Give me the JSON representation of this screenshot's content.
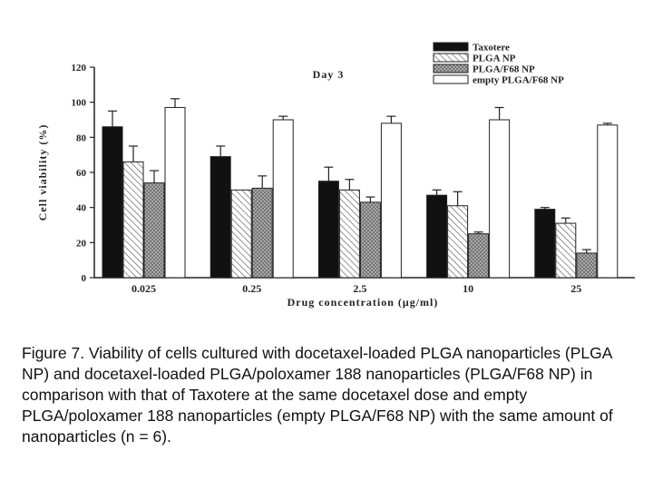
{
  "chart_data": {
    "type": "bar",
    "title": "Day 3",
    "xlabel": "Drug concentration (μg/ml)",
    "ylabel": "Cell viability (%)",
    "ylim": [
      0,
      120
    ],
    "yticks": [
      0,
      20,
      40,
      60,
      80,
      100,
      120
    ],
    "categories": [
      "0.025",
      "0.25",
      "2.5",
      "10",
      "25"
    ],
    "legend_position": "top-right",
    "grid": false,
    "series": [
      {
        "name": "Taxotere",
        "pattern": "solid-black",
        "values": [
          86,
          69,
          55,
          47,
          39
        ],
        "errors": [
          9,
          6,
          8,
          3,
          1
        ]
      },
      {
        "name": "PLGA NP",
        "pattern": "diagonal-hatch",
        "values": [
          66,
          50,
          50,
          41,
          31
        ],
        "errors": [
          9,
          0,
          6,
          8,
          3
        ]
      },
      {
        "name": "PLGA/F68 NP",
        "pattern": "crosshatch-gray",
        "values": [
          54,
          51,
          43,
          25,
          14
        ],
        "errors": [
          7,
          7,
          3,
          1,
          2
        ]
      },
      {
        "name": "empty PLGA/F68 NP",
        "pattern": "white",
        "values": [
          97,
          90,
          88,
          90,
          87
        ],
        "errors": [
          5,
          2,
          4,
          7,
          1
        ]
      }
    ]
  },
  "caption": "Figure 7. Viability of cells cultured with docetaxel-loaded PLGA nanoparticles (PLGA NP) and docetaxel-loaded PLGA/poloxamer 188 nanoparticles (PLGA/F68 NP) in comparison with that of Taxotere at the same docetaxel dose and empty PLGA/poloxamer 188 nanoparticles (empty PLGA/F68 NP) with the same amount of nanoparticles (n = 6)."
}
